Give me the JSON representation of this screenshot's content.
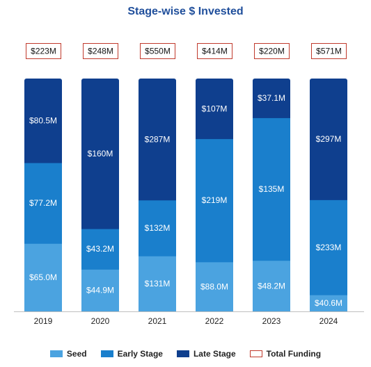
{
  "chart_data": {
    "type": "bar",
    "stacked": true,
    "title": "Stage-wise $ Invested",
    "xlabel": "",
    "ylabel": "",
    "categories": [
      "2019",
      "2020",
      "2021",
      "2022",
      "2023",
      "2024"
    ],
    "series": [
      {
        "name": "Seed",
        "color": "#4ba3e0",
        "values": [
          65.0,
          44.9,
          131,
          88.0,
          48.2,
          40.6
        ],
        "labels": [
          "$65.0M",
          "$44.9M",
          "$131M",
          "$88.0M",
          "$48.2M",
          "$40.6M"
        ]
      },
      {
        "name": "Early Stage",
        "color": "#1a7fcc",
        "values": [
          77.2,
          43.2,
          132,
          219,
          135,
          233
        ],
        "labels": [
          "$77.2M",
          "$43.2M",
          "$132M",
          "$219M",
          "$135M",
          "$233M"
        ]
      },
      {
        "name": "Late Stage",
        "color": "#0f3f8e",
        "values": [
          80.5,
          160,
          287,
          107,
          37.1,
          297
        ],
        "labels": [
          "$80.5M",
          "$160M",
          "$287M",
          "$107M",
          "$37.1M",
          "$297M"
        ]
      }
    ],
    "totals": {
      "name": "Total Funding",
      "color": "#c0392b",
      "labels": [
        "$223M",
        "$248M",
        "$550M",
        "$414M",
        "$220M",
        "$571M"
      ]
    },
    "normalized_to_100_percent": true,
    "legend_position": "bottom",
    "grid": false
  }
}
